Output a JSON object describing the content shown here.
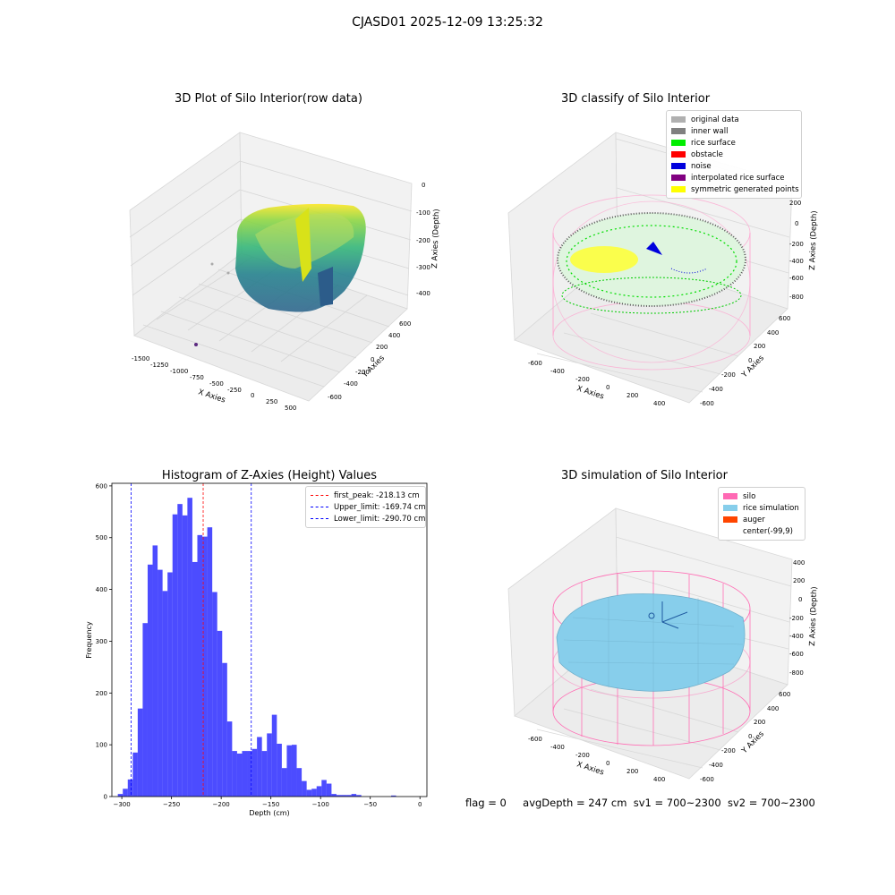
{
  "suptitle": "CJASD01 2025-12-09 13:25:32",
  "panels": {
    "raw": {
      "title": "3D Plot of Silo Interior(row data)",
      "xlabel": "X Axies",
      "ylabel": "Y Axies",
      "zlabel": "Z Axies (Depth)",
      "xticks": [
        "-1500",
        "-1250",
        "-1000",
        "-750",
        "-500",
        "-250",
        "0",
        "250",
        "500"
      ],
      "yticks": [
        "-600",
        "-400",
        "-200",
        "0",
        "200",
        "400",
        "600"
      ],
      "zticks": [
        "0",
        "-100",
        "-200",
        "-300",
        "-400"
      ]
    },
    "classify": {
      "title": "3D classify of Silo Interior",
      "xlabel": "X Axies",
      "ylabel": "Y Axies",
      "zlabel": "Z Axies (Depth)",
      "xticks": [
        "-600",
        "-400",
        "-200",
        "0",
        "200",
        "400"
      ],
      "yticks": [
        "-600",
        "-400",
        "-200",
        "0",
        "200",
        "400",
        "600"
      ],
      "zticks": [
        "200",
        "0",
        "-200",
        "-400",
        "-600",
        "-800"
      ],
      "legend": [
        {
          "label": "original data",
          "color": "#b0b0b0"
        },
        {
          "label": "inner wall",
          "color": "#808080"
        },
        {
          "label": "rice surface",
          "color": "#00ee00"
        },
        {
          "label": "obstacle",
          "color": "#ff0000"
        },
        {
          "label": "noise",
          "color": "#0000dd"
        },
        {
          "label": "interpolated rice surface",
          "color": "#800080"
        },
        {
          "label": "symmetric generated points",
          "color": "#ffff00"
        }
      ]
    },
    "simulation": {
      "title": "3D simulation of Silo Interior",
      "xlabel": "X Axies",
      "ylabel": "Y Axies",
      "zlabel": "Z Axies (Depth)",
      "xticks": [
        "-600",
        "-400",
        "-200",
        "0",
        "200",
        "400"
      ],
      "yticks": [
        "-600",
        "-400",
        "-200",
        "0",
        "200",
        "400",
        "600"
      ],
      "zticks": [
        "400",
        "200",
        "0",
        "-200",
        "-400",
        "-600",
        "-800"
      ],
      "legend": [
        {
          "label": "silo",
          "color": "#ff69b4"
        },
        {
          "label": "rice simulation",
          "color": "#87ceeb"
        },
        {
          "label": "auger",
          "color": "#ff4500"
        },
        {
          "label": "center(-99,9)",
          "color": ""
        }
      ]
    },
    "histogram": {
      "legend": [
        {
          "label": "first_peak: -218.13 cm",
          "color": "#ff0000"
        },
        {
          "label": "Upper_limit: -169.74 cm",
          "color": "#0000ff"
        },
        {
          "label": "Lower_limit: -290.70 cm",
          "color": "#0000ff"
        }
      ]
    }
  },
  "chart_data": {
    "type": "bar",
    "title": "Histogram of Z-Axies (Height) Values",
    "xlabel": "Depth (cm)",
    "ylabel": "Frequency",
    "xlim": [
      -310,
      7
    ],
    "ylim": [
      0,
      605
    ],
    "xticks": [
      -300,
      -250,
      -200,
      -150,
      -100,
      -50,
      0
    ],
    "yticks": [
      0,
      100,
      200,
      300,
      400,
      500,
      600
    ],
    "bin_start": -304,
    "bin_width": 5,
    "values": [
      5,
      15,
      33,
      85,
      170,
      335,
      448,
      485,
      438,
      397,
      433,
      545,
      565,
      543,
      577,
      453,
      505,
      502,
      520,
      395,
      320,
      258,
      145,
      88,
      83,
      88,
      88,
      92,
      115,
      88,
      122,
      158,
      102,
      55,
      99,
      100,
      55,
      30,
      13,
      15,
      20,
      32,
      25,
      5,
      3,
      3,
      3,
      5,
      3,
      0,
      0,
      0,
      0,
      0,
      0,
      2,
      0,
      0,
      0,
      0,
      0,
      0,
      0
    ],
    "bar_color": "#0000ff",
    "lines": [
      {
        "name": "first_peak",
        "x": -218.13,
        "color": "#ff0000"
      },
      {
        "name": "Upper_limit",
        "x": -169.74,
        "color": "#0000ff"
      },
      {
        "name": "Lower_limit",
        "x": -290.7,
        "color": "#0000ff"
      }
    ],
    "legend_position": "top-right"
  },
  "footer": {
    "flag": "flag = 0",
    "avg": "avgDepth = 247 cm",
    "sv1": "sv1 = 700~2300",
    "sv2": "sv2 = 700~2300"
  }
}
